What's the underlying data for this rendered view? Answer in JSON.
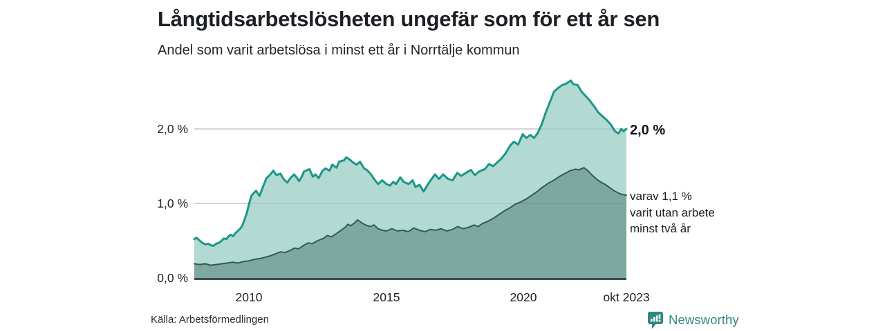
{
  "chart_data": {
    "type": "area",
    "title": "Långtidsarbetslösheten ungefär som för ett år sen",
    "subtitle": "Andel som varit arbetslösa i minst ett år i Norrtälje kommun",
    "source": "Källa: Arbetsförmedlingen",
    "brand": "Newsworthy",
    "grid": "on",
    "colors": {
      "grid": "#d9d9d9",
      "grid_overlay": "rgba(90,90,90,0.16)",
      "axis": "#3a4a52",
      "brand_teal": "#2e8a7e"
    },
    "x_axis": {
      "min": 2008.0,
      "max": 2023.75,
      "ticks": [
        {
          "t": 2010,
          "label": "2010"
        },
        {
          "t": 2015,
          "label": "2015"
        },
        {
          "t": 2020,
          "label": "2020"
        },
        {
          "t": 2023.75,
          "label": "okt 2023"
        }
      ]
    },
    "y_axis": {
      "min": 0,
      "max": 2.7,
      "unit": "%",
      "ticks": [
        {
          "v": 0,
          "label": "0,0 %"
        },
        {
          "v": 1,
          "label": "1,0 %"
        },
        {
          "v": 2,
          "label": "2,0 %"
        }
      ]
    },
    "annotations": {
      "series1_end_label": "2,0 %",
      "series2_lines": [
        "varav 1,1 %",
        "varit utan arbete",
        "minst två år"
      ]
    },
    "series": [
      {
        "id": "arbetslosa-minst-ett-ar",
        "color": "#1b9688",
        "fill": "#b3d9d3",
        "end_value": 2.0,
        "points": [
          [
            2008.0,
            0.52
          ],
          [
            2008.08,
            0.54
          ],
          [
            2008.17,
            0.51
          ],
          [
            2008.3,
            0.47
          ],
          [
            2008.4,
            0.45
          ],
          [
            2008.5,
            0.46
          ],
          [
            2008.6,
            0.44
          ],
          [
            2008.7,
            0.43
          ],
          [
            2008.8,
            0.46
          ],
          [
            2008.9,
            0.47
          ],
          [
            2009.0,
            0.5
          ],
          [
            2009.08,
            0.53
          ],
          [
            2009.17,
            0.52
          ],
          [
            2009.25,
            0.56
          ],
          [
            2009.33,
            0.58
          ],
          [
            2009.42,
            0.56
          ],
          [
            2009.5,
            0.6
          ],
          [
            2009.58,
            0.63
          ],
          [
            2009.67,
            0.66
          ],
          [
            2009.75,
            0.7
          ],
          [
            2009.83,
            0.78
          ],
          [
            2009.92,
            0.88
          ],
          [
            2010.0,
            1.0
          ],
          [
            2010.08,
            1.1
          ],
          [
            2010.17,
            1.14
          ],
          [
            2010.25,
            1.17
          ],
          [
            2010.38,
            1.1
          ],
          [
            2010.5,
            1.22
          ],
          [
            2010.63,
            1.34
          ],
          [
            2010.75,
            1.38
          ],
          [
            2010.88,
            1.44
          ],
          [
            2011.0,
            1.38
          ],
          [
            2011.14,
            1.4
          ],
          [
            2011.25,
            1.33
          ],
          [
            2011.39,
            1.28
          ],
          [
            2011.5,
            1.34
          ],
          [
            2011.64,
            1.39
          ],
          [
            2011.75,
            1.34
          ],
          [
            2011.82,
            1.3
          ],
          [
            2011.92,
            1.36
          ],
          [
            2012.0,
            1.43
          ],
          [
            2012.2,
            1.46
          ],
          [
            2012.32,
            1.36
          ],
          [
            2012.42,
            1.39
          ],
          [
            2012.53,
            1.34
          ],
          [
            2012.68,
            1.44
          ],
          [
            2012.78,
            1.47
          ],
          [
            2012.93,
            1.44
          ],
          [
            2013.03,
            1.52
          ],
          [
            2013.18,
            1.48
          ],
          [
            2013.28,
            1.56
          ],
          [
            2013.46,
            1.58
          ],
          [
            2013.54,
            1.62
          ],
          [
            2013.66,
            1.59
          ],
          [
            2013.79,
            1.55
          ],
          [
            2013.91,
            1.52
          ],
          [
            2014.04,
            1.56
          ],
          [
            2014.19,
            1.47
          ],
          [
            2014.29,
            1.45
          ],
          [
            2014.44,
            1.39
          ],
          [
            2014.55,
            1.33
          ],
          [
            2014.7,
            1.26
          ],
          [
            2014.85,
            1.31
          ],
          [
            2015.0,
            1.26
          ],
          [
            2015.13,
            1.24
          ],
          [
            2015.25,
            1.29
          ],
          [
            2015.35,
            1.26
          ],
          [
            2015.51,
            1.35
          ],
          [
            2015.63,
            1.29
          ],
          [
            2015.81,
            1.26
          ],
          [
            2015.96,
            1.31
          ],
          [
            2016.06,
            1.22
          ],
          [
            2016.21,
            1.25
          ],
          [
            2016.36,
            1.16
          ],
          [
            2016.52,
            1.26
          ],
          [
            2016.77,
            1.39
          ],
          [
            2016.92,
            1.33
          ],
          [
            2017.07,
            1.39
          ],
          [
            2017.25,
            1.33
          ],
          [
            2017.42,
            1.31
          ],
          [
            2017.58,
            1.41
          ],
          [
            2017.73,
            1.37
          ],
          [
            2017.9,
            1.41
          ],
          [
            2018.08,
            1.45
          ],
          [
            2018.23,
            1.38
          ],
          [
            2018.38,
            1.43
          ],
          [
            2018.59,
            1.46
          ],
          [
            2018.74,
            1.53
          ],
          [
            2018.89,
            1.5
          ],
          [
            2019.04,
            1.55
          ],
          [
            2019.19,
            1.6
          ],
          [
            2019.34,
            1.67
          ],
          [
            2019.52,
            1.78
          ],
          [
            2019.65,
            1.83
          ],
          [
            2019.8,
            1.79
          ],
          [
            2019.97,
            1.93
          ],
          [
            2020.1,
            1.88
          ],
          [
            2020.25,
            1.92
          ],
          [
            2020.38,
            1.88
          ],
          [
            2020.51,
            1.94
          ],
          [
            2020.66,
            2.06
          ],
          [
            2020.81,
            2.22
          ],
          [
            2020.96,
            2.36
          ],
          [
            2021.11,
            2.5
          ],
          [
            2021.26,
            2.55
          ],
          [
            2021.41,
            2.59
          ],
          [
            2021.57,
            2.61
          ],
          [
            2021.72,
            2.65
          ],
          [
            2021.82,
            2.6
          ],
          [
            2021.97,
            2.59
          ],
          [
            2022.12,
            2.5
          ],
          [
            2022.27,
            2.44
          ],
          [
            2022.42,
            2.38
          ],
          [
            2022.58,
            2.3
          ],
          [
            2022.73,
            2.22
          ],
          [
            2022.88,
            2.17
          ],
          [
            2023.03,
            2.12
          ],
          [
            2023.18,
            2.06
          ],
          [
            2023.33,
            1.97
          ],
          [
            2023.46,
            1.94
          ],
          [
            2023.56,
            2.0
          ],
          [
            2023.64,
            1.97
          ],
          [
            2023.75,
            2.0
          ]
        ]
      },
      {
        "id": "utan-arbete-minst-tva-ar",
        "color": "#2f5c55",
        "fill": "#7da79f",
        "end_value": 1.11,
        "points": [
          [
            2008.0,
            0.19
          ],
          [
            2008.2,
            0.18
          ],
          [
            2008.4,
            0.19
          ],
          [
            2008.6,
            0.17
          ],
          [
            2008.8,
            0.18
          ],
          [
            2009.0,
            0.19
          ],
          [
            2009.2,
            0.2
          ],
          [
            2009.4,
            0.21
          ],
          [
            2009.6,
            0.2
          ],
          [
            2009.8,
            0.22
          ],
          [
            2010.0,
            0.23
          ],
          [
            2010.2,
            0.25
          ],
          [
            2010.4,
            0.26
          ],
          [
            2010.6,
            0.28
          ],
          [
            2010.8,
            0.3
          ],
          [
            2011.0,
            0.33
          ],
          [
            2011.15,
            0.35
          ],
          [
            2011.3,
            0.34
          ],
          [
            2011.5,
            0.37
          ],
          [
            2011.65,
            0.4
          ],
          [
            2011.8,
            0.39
          ],
          [
            2012.0,
            0.44
          ],
          [
            2012.15,
            0.47
          ],
          [
            2012.3,
            0.46
          ],
          [
            2012.5,
            0.5
          ],
          [
            2012.7,
            0.53
          ],
          [
            2012.85,
            0.57
          ],
          [
            2013.0,
            0.55
          ],
          [
            2013.2,
            0.6
          ],
          [
            2013.35,
            0.64
          ],
          [
            2013.5,
            0.68
          ],
          [
            2013.6,
            0.72
          ],
          [
            2013.7,
            0.7
          ],
          [
            2013.85,
            0.74
          ],
          [
            2013.95,
            0.78
          ],
          [
            2014.1,
            0.74
          ],
          [
            2014.25,
            0.71
          ],
          [
            2014.4,
            0.69
          ],
          [
            2014.55,
            0.71
          ],
          [
            2014.7,
            0.66
          ],
          [
            2014.85,
            0.64
          ],
          [
            2015.0,
            0.63
          ],
          [
            2015.2,
            0.66
          ],
          [
            2015.4,
            0.63
          ],
          [
            2015.6,
            0.64
          ],
          [
            2015.8,
            0.62
          ],
          [
            2016.0,
            0.67
          ],
          [
            2016.2,
            0.64
          ],
          [
            2016.4,
            0.62
          ],
          [
            2016.6,
            0.65
          ],
          [
            2016.8,
            0.64
          ],
          [
            2017.0,
            0.66
          ],
          [
            2017.2,
            0.63
          ],
          [
            2017.4,
            0.65
          ],
          [
            2017.6,
            0.69
          ],
          [
            2017.8,
            0.66
          ],
          [
            2018.0,
            0.68
          ],
          [
            2018.2,
            0.71
          ],
          [
            2018.35,
            0.69
          ],
          [
            2018.5,
            0.73
          ],
          [
            2018.7,
            0.76
          ],
          [
            2018.9,
            0.8
          ],
          [
            2019.1,
            0.85
          ],
          [
            2019.3,
            0.9
          ],
          [
            2019.5,
            0.94
          ],
          [
            2019.7,
            0.99
          ],
          [
            2019.9,
            1.02
          ],
          [
            2020.1,
            1.06
          ],
          [
            2020.3,
            1.11
          ],
          [
            2020.5,
            1.16
          ],
          [
            2020.7,
            1.22
          ],
          [
            2020.9,
            1.27
          ],
          [
            2021.1,
            1.31
          ],
          [
            2021.3,
            1.36
          ],
          [
            2021.5,
            1.4
          ],
          [
            2021.7,
            1.44
          ],
          [
            2021.9,
            1.46
          ],
          [
            2022.0,
            1.45
          ],
          [
            2022.2,
            1.48
          ],
          [
            2022.35,
            1.44
          ],
          [
            2022.5,
            1.38
          ],
          [
            2022.65,
            1.33
          ],
          [
            2022.8,
            1.29
          ],
          [
            2023.0,
            1.25
          ],
          [
            2023.15,
            1.21
          ],
          [
            2023.3,
            1.17
          ],
          [
            2023.45,
            1.14
          ],
          [
            2023.6,
            1.12
          ],
          [
            2023.75,
            1.11
          ]
        ]
      }
    ]
  }
}
